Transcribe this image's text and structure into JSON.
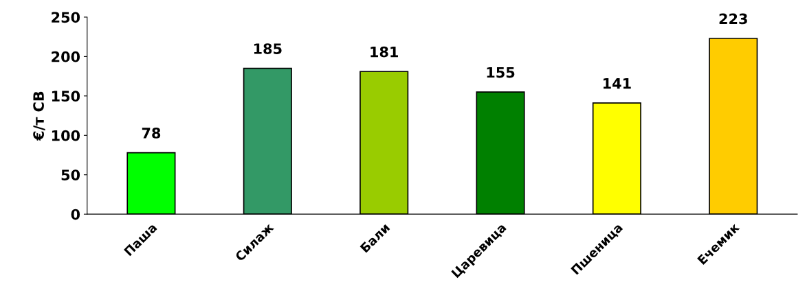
{
  "chart_data": {
    "type": "bar",
    "ylabel": "€/т СВ",
    "categories": [
      "Паша",
      "Силаж",
      "Бали",
      "Царевица",
      "Пшеница",
      "Ечемик"
    ],
    "values": [
      78,
      185,
      181,
      155,
      141,
      223
    ],
    "colors": [
      "#00ff00",
      "#339966",
      "#99cc00",
      "#008000",
      "#ffff00",
      "#ffcc00"
    ],
    "ylim": [
      0,
      250
    ],
    "yticks": [
      0,
      50,
      100,
      150,
      200,
      250
    ],
    "data_labels": true,
    "grid": false,
    "legend": false
  }
}
